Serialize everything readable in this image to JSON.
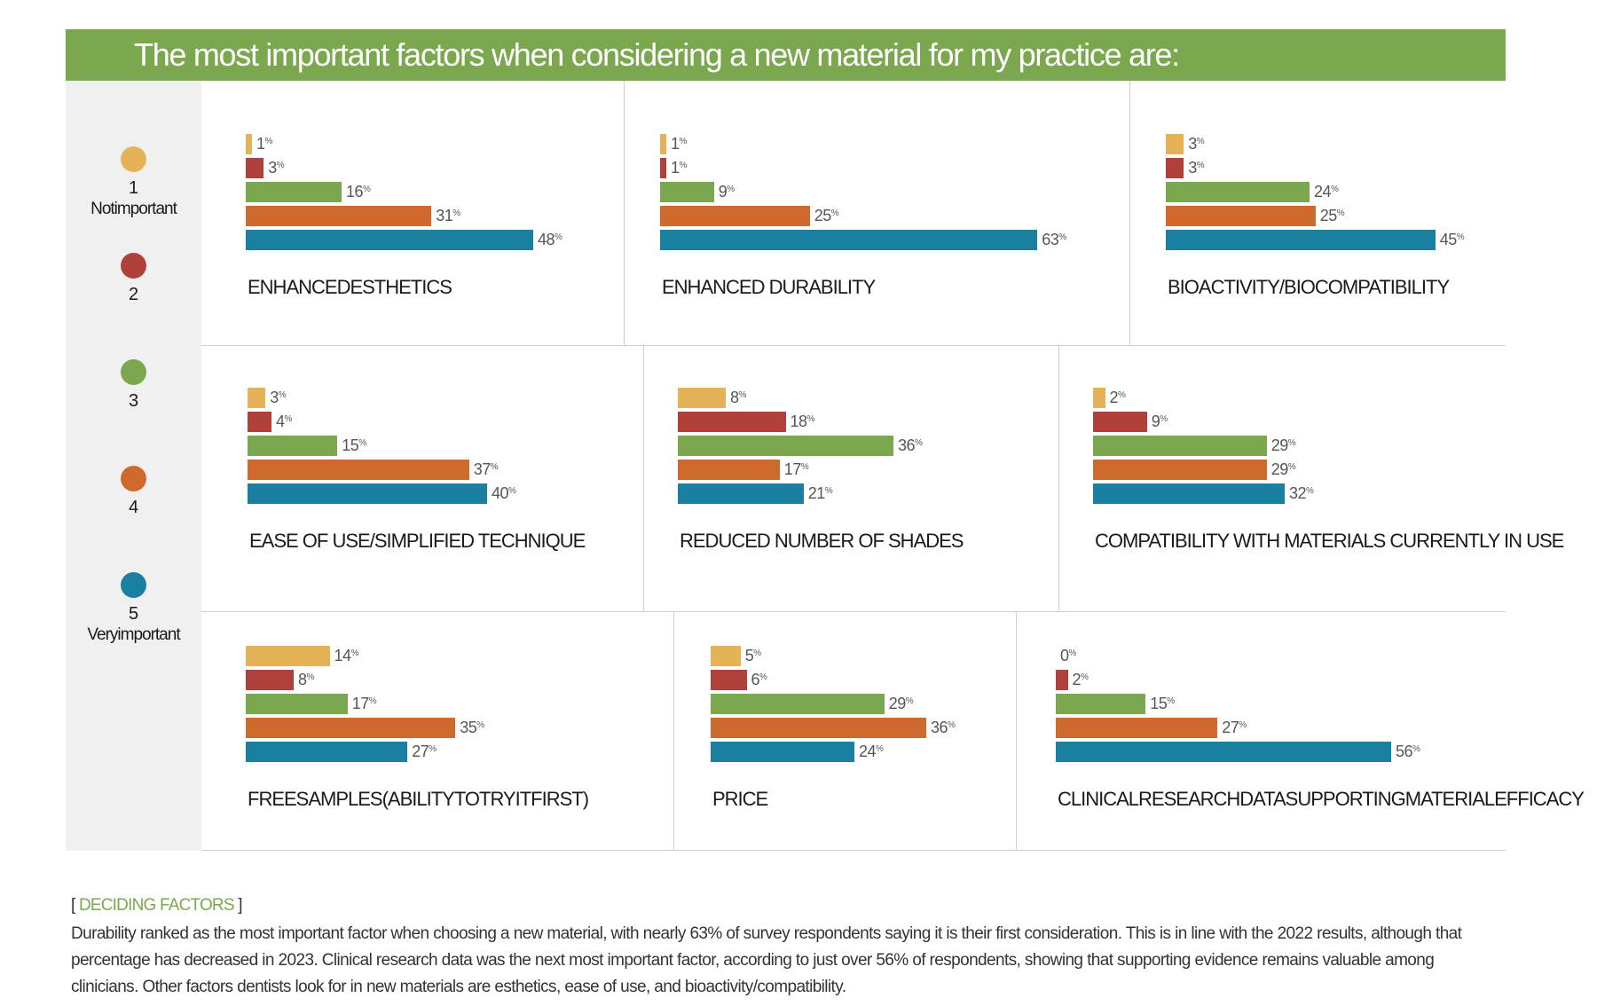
{
  "header": {
    "title": "The most important factors when considering a new material for my practice are:"
  },
  "legend": [
    {
      "level": "1",
      "description": "Notimportant",
      "color": "#e5b257"
    },
    {
      "level": "2",
      "description": "",
      "color": "#b0403a"
    },
    {
      "level": "3",
      "description": "",
      "color": "#7ba84e"
    },
    {
      "level": "4",
      "description": "",
      "color": "#cf692e"
    },
    {
      "level": "5",
      "description": "Veryimportant",
      "color": "#1a7fa0"
    }
  ],
  "chart_data": {
    "type": "bar",
    "orientation": "horizontal",
    "title": "The most important factors when considering a new material for my practice are:",
    "series_names": [
      "1 Not important",
      "2",
      "3",
      "4",
      "5 Very important"
    ],
    "series_colors": [
      "#e5b257",
      "#b0403a",
      "#7ba84e",
      "#cf692e",
      "#1a7fa0"
    ],
    "unit": "%",
    "legend_position": "left",
    "grid": false,
    "xlim": [
      0,
      70
    ],
    "panels": [
      {
        "label": "ENHANCEDESTHETICS",
        "values": [
          1,
          3,
          16,
          31,
          48
        ]
      },
      {
        "label": "ENHANCED DURABILITY",
        "values": [
          1,
          1,
          9,
          25,
          63
        ]
      },
      {
        "label": "BIOACTIVITY/BIOCOMPATIBILITY",
        "values": [
          3,
          3,
          24,
          25,
          45
        ]
      },
      {
        "label": "EASE OF USE/SIMPLIFIED TECHNIQUE",
        "values": [
          3,
          4,
          15,
          37,
          40
        ]
      },
      {
        "label": "REDUCED NUMBER OF SHADES",
        "values": [
          8,
          18,
          36,
          17,
          21
        ]
      },
      {
        "label": "COMPATIBILITY WITH MATERIALS CURRENTLY IN USE",
        "values": [
          2,
          9,
          29,
          29,
          32
        ]
      },
      {
        "label": "FREESAMPLES(ABILITYTOTRYITFIRST)",
        "values": [
          14,
          8,
          17,
          35,
          27
        ]
      },
      {
        "label": "PRICE",
        "values": [
          5,
          6,
          29,
          36,
          24
        ]
      },
      {
        "label": "CLINICALRESEARCHDATASUPPORTINGMATERIALEFFICACY",
        "values": [
          0,
          2,
          15,
          27,
          56
        ]
      }
    ]
  },
  "caption": {
    "bracket_open": "[ ",
    "heading": "DECIDING FACTORS",
    "bracket_close": " ]",
    "body": "Durability ranked as the most important factor when choosing a new material, with nearly 63% of survey respondents saying it is their first consideration. This is in line with the 2022 results, although that percentage has decreased in 2023. Clinical research data was the next most important factor, according to just over 56% of respondents, showing that supporting evidence remains valuable among clinicians. Other factors dentists look for in new materials are esthetics, ease of use, and bioactivity/compatibility."
  }
}
